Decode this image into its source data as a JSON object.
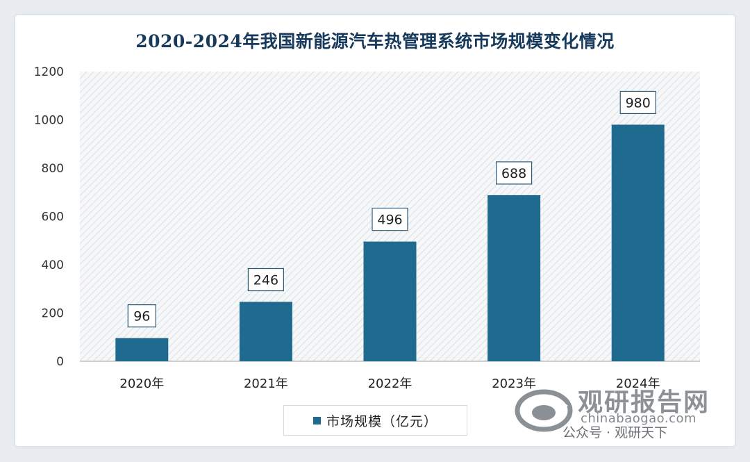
{
  "watermark": {
    "brand": "观研报告网",
    "url": "chinabaogao.com",
    "wechat": "公众号 · 观研天下"
  },
  "chart_data": {
    "type": "bar",
    "title": "2020-2024年我国新能源汽车热管理系统市场规模变化情况",
    "categories": [
      "2020年",
      "2021年",
      "2022年",
      "2023年",
      "2024年"
    ],
    "series": [
      {
        "name": "市场规模（亿元）",
        "values": [
          96,
          246,
          496,
          688,
          980
        ]
      }
    ],
    "ylim": [
      0,
      1200
    ],
    "yticks": [
      0,
      200,
      400,
      600,
      800,
      1000,
      1200
    ],
    "xlabel": "",
    "ylabel": "",
    "grid": false,
    "legend_position": "bottom",
    "bar_color": "#1f6b8f",
    "plot_background": "hatched light gray"
  }
}
